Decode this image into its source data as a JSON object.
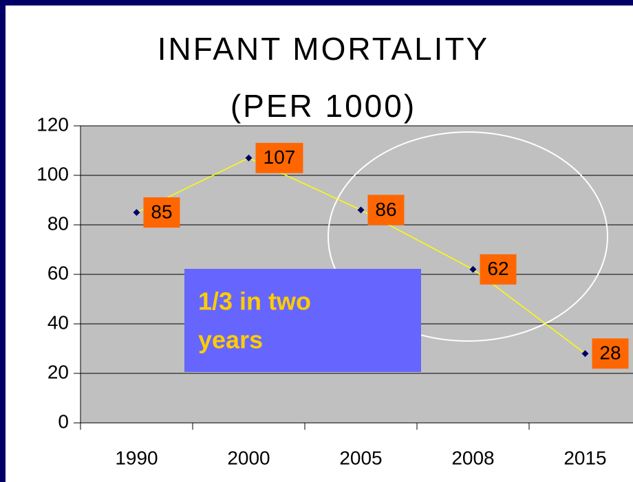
{
  "chart_data": {
    "type": "line",
    "title": [
      "INFANT MORTALITY",
      "(PER 1000)"
    ],
    "categories": [
      "1990",
      "2000",
      "2005",
      "2008",
      "2015"
    ],
    "values": [
      85,
      107,
      86,
      62,
      28
    ],
    "color": "#ffff00",
    "marker_color": "#000066",
    "label_color": "#ff6600",
    "ylim": [
      0,
      120
    ],
    "yticks": [
      0,
      20,
      40,
      60,
      80,
      100,
      120
    ],
    "grid": true,
    "annotation": [
      "1/3 in two",
      "years"
    ]
  }
}
